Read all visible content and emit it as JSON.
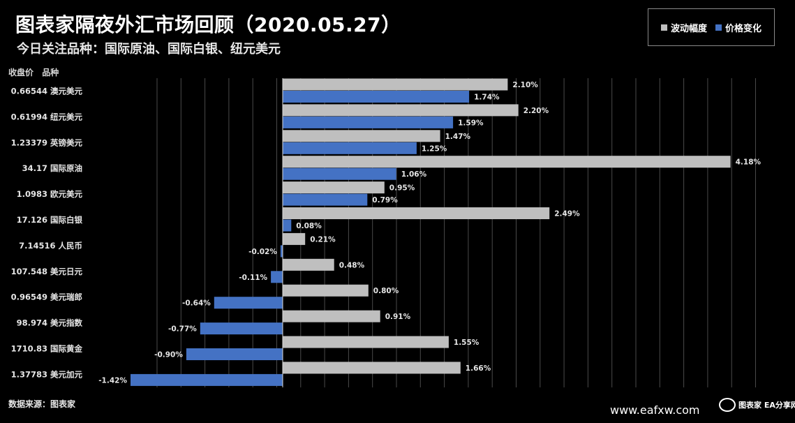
{
  "header": {
    "title": "图表家隔夜外汇市场回顾（2020.05.27）",
    "subtitle": "今日关注品种：国际原油、国际白银、纽元美元"
  },
  "legend": [
    {
      "label": "波动幅度",
      "color": "#bfbfbf"
    },
    {
      "label": "价格变化",
      "color": "#4472c4"
    }
  ],
  "columns": {
    "close": "收盘价",
    "name": "品种"
  },
  "footer": {
    "source": "数据来源：图表家",
    "watermark": "www.eafxw.com",
    "logo_text": "图表家 EA分享网"
  },
  "chart_data": {
    "type": "bar",
    "orientation": "horizontal",
    "unit": "%",
    "categories": [
      "澳元美元",
      "纽元美元",
      "英镑美元",
      "国际原油",
      "欧元美元",
      "国际白银",
      "人民币",
      "美元日元",
      "美元瑞郎",
      "美元指数",
      "国际黄金",
      "美元加元"
    ],
    "closing_prices": [
      "0.66544",
      "0.61994",
      "1.23379",
      "34.17",
      "1.0983",
      "17.126",
      "7.14516",
      "107.548",
      "0.96549",
      "98.974",
      "1710.83",
      "1.37783"
    ],
    "series": [
      {
        "name": "波动幅度",
        "values": [
          2.1,
          2.2,
          1.47,
          4.18,
          0.95,
          2.49,
          0.21,
          0.48,
          0.8,
          0.91,
          1.55,
          1.66
        ],
        "color": "#bfbfbf"
      },
      {
        "name": "价格变化",
        "values": [
          1.74,
          1.59,
          1.25,
          1.06,
          0.79,
          0.08,
          -0.02,
          -0.11,
          -0.64,
          -0.77,
          -0.9,
          -1.42
        ],
        "color": "#4472c4"
      }
    ],
    "xlim": [
      -1.42,
      4.6
    ],
    "grid": true,
    "legend_position": "top-right"
  }
}
